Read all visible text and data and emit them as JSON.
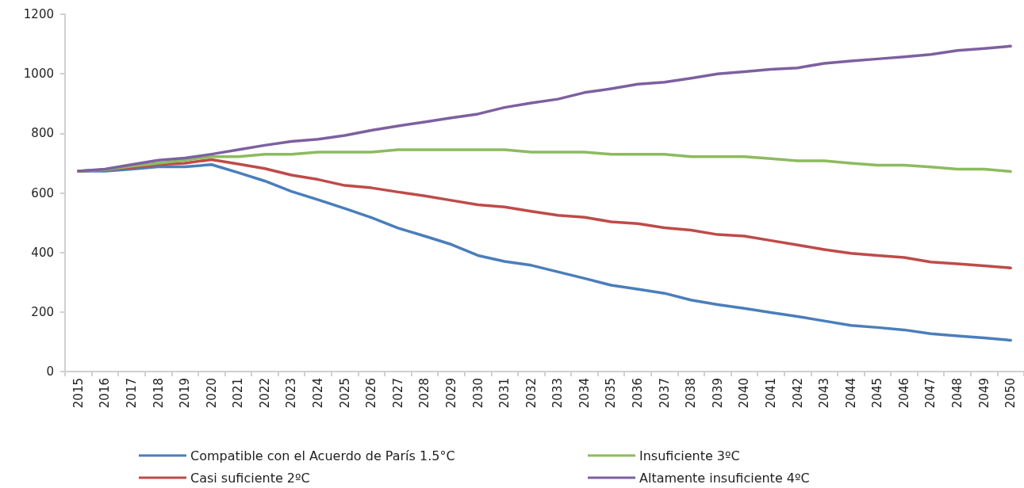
{
  "chart_data": {
    "type": "line",
    "categories": [
      "2015",
      "2016",
      "2017",
      "2018",
      "2019",
      "2020",
      "2021",
      "2022",
      "2023",
      "2024",
      "2025",
      "2026",
      "2027",
      "2028",
      "2029",
      "2030",
      "2031",
      "2032",
      "2033",
      "2034",
      "2035",
      "2036",
      "2037",
      "2038",
      "2039",
      "2040",
      "2041",
      "2042",
      "2043",
      "2044",
      "2045",
      "2046",
      "2047",
      "2048",
      "2049",
      "2050"
    ],
    "series": [
      {
        "name": "Compatible con el Acuerdo de París 1.5°C",
        "color": "#4a7ebb",
        "values": [
          673,
          673,
          680,
          688,
          688,
          695,
          668,
          640,
          605,
          577,
          548,
          517,
          482,
          455,
          427,
          390,
          370,
          357,
          335,
          313,
          290,
          277,
          263,
          240,
          225,
          212,
          198,
          185,
          170,
          155,
          148,
          140,
          127,
          120,
          113,
          105
        ]
      },
      {
        "name": "Casi suficiente 2ºC",
        "color": "#be4b48",
        "values": [
          673,
          678,
          685,
          695,
          700,
          712,
          697,
          682,
          660,
          645,
          625,
          617,
          603,
          590,
          575,
          560,
          553,
          538,
          525,
          518,
          503,
          497,
          483,
          475,
          460,
          455,
          440,
          425,
          410,
          397,
          390,
          383,
          368,
          362,
          355,
          348
        ]
      },
      {
        "name": "Insuficiente 3ºC",
        "color": "#8cbb5e",
        "values": [
          673,
          678,
          690,
          700,
          710,
          722,
          722,
          730,
          730,
          737,
          737,
          737,
          745,
          745,
          745,
          745,
          745,
          737,
          737,
          737,
          730,
          730,
          730,
          722,
          722,
          722,
          715,
          708,
          708,
          700,
          693,
          693,
          687,
          680,
          680,
          672
        ]
      },
      {
        "name": "Altamente insuficiente 4ºC",
        "color": "#7d60a0",
        "values": [
          673,
          680,
          695,
          710,
          717,
          730,
          745,
          760,
          773,
          780,
          793,
          810,
          825,
          838,
          852,
          865,
          887,
          902,
          915,
          937,
          950,
          965,
          972,
          985,
          1000,
          1007,
          1015,
          1020,
          1035,
          1043,
          1050,
          1057,
          1065,
          1078,
          1085,
          1093
        ]
      }
    ],
    "ylim": [
      0,
      1200
    ],
    "yticks": [
      0,
      200,
      400,
      600,
      800,
      1000,
      1200
    ],
    "grid": false,
    "legend": "bottom",
    "marker": "none",
    "line_style": "solid"
  }
}
